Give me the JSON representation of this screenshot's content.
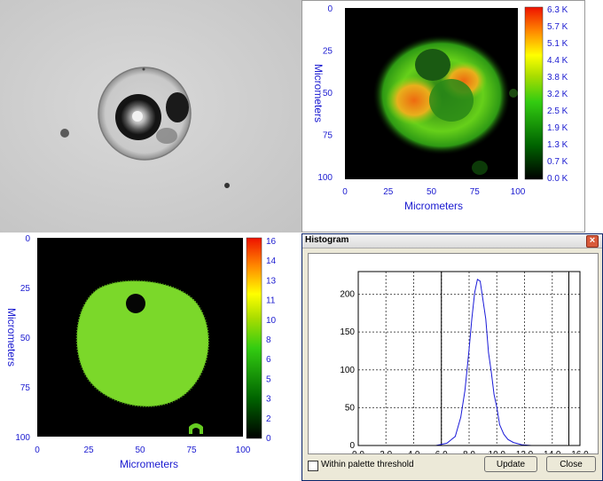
{
  "panel_thermal": {
    "colorbar_ticks": [
      "6.3 K",
      "5.7 K",
      "5.1 K",
      "4.4 K",
      "3.8 K",
      "3.2 K",
      "2.5 K",
      "1.9 K",
      "1.3 K",
      "0.7 K",
      "0.0 K"
    ],
    "y_ticks": [
      "0",
      "25",
      "50",
      "75",
      "100"
    ],
    "x_ticks": [
      "0",
      "25",
      "50",
      "75",
      "100"
    ],
    "ylabel": "Micrometers",
    "xlabel": "Micrometers"
  },
  "panel_lifetime": {
    "colorbar_ticks": [
      "16",
      "14",
      "13",
      "11",
      "10",
      "8",
      "6",
      "5",
      "3",
      "2",
      "0"
    ],
    "y_ticks": [
      "0",
      "25",
      "50",
      "75",
      "100"
    ],
    "x_ticks": [
      "0",
      "25",
      "50",
      "75",
      "100"
    ],
    "ylabel": "Micrometers",
    "xlabel": "Micrometers"
  },
  "histogram_window": {
    "title": "Histogram",
    "close_glyph": "×",
    "checkbox_label": "Within palette threshold",
    "checkbox_checked": false,
    "update_label": "Update",
    "close_label": "Close"
  },
  "chart_data": {
    "type": "line",
    "x": [
      5.6,
      6.4,
      7.0,
      7.4,
      7.7,
      8.0,
      8.2,
      8.4,
      8.6,
      8.8,
      9.0,
      9.2,
      9.4,
      9.6,
      9.8,
      10.0,
      10.2,
      10.5,
      10.8,
      11.2,
      11.8,
      12.5
    ],
    "y": [
      0,
      3,
      12,
      35,
      75,
      125,
      170,
      200,
      222,
      215,
      195,
      165,
      125,
      95,
      70,
      48,
      30,
      15,
      8,
      4,
      1,
      0
    ],
    "x_tick_labels": [
      "0.0",
      "2.0",
      "4.0",
      "6.0",
      "8.0",
      "10.0",
      "12.0",
      "14.0",
      "16.0"
    ],
    "y_tick_labels": [
      "0",
      "50",
      "100",
      "150",
      "200"
    ],
    "xlim": [
      0,
      16
    ],
    "ylim": [
      0,
      230
    ],
    "threshold_lines": [
      6.0,
      15.2
    ],
    "grid": true,
    "line_color": "#1a1ad8"
  }
}
